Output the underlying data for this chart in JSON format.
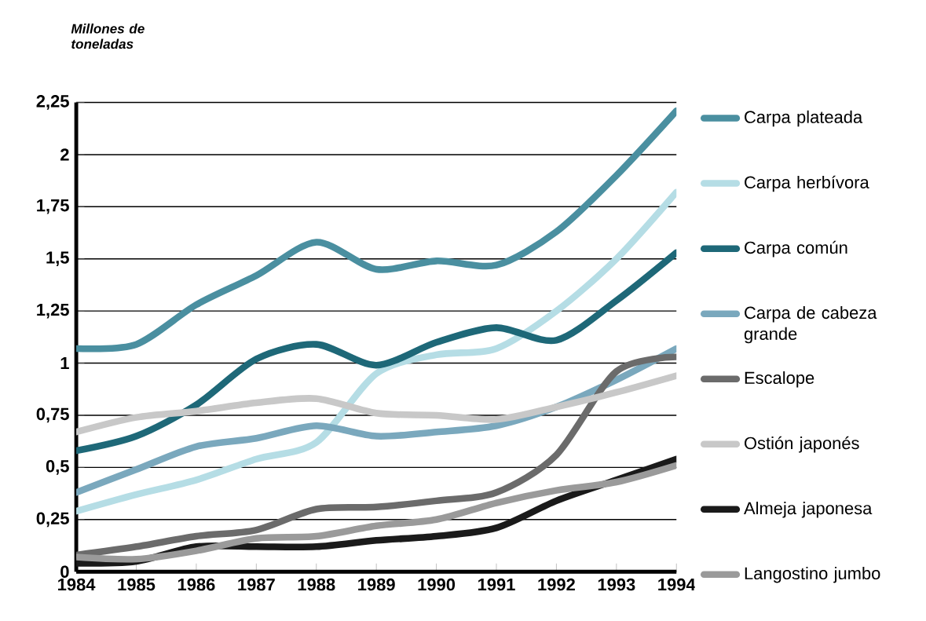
{
  "chart_data": {
    "type": "line",
    "ylabel": "Millones de toneladas",
    "x": [
      1984,
      1985,
      1986,
      1987,
      1988,
      1989,
      1990,
      1991,
      1992,
      1993,
      1994
    ],
    "xlim": [
      1984,
      1994
    ],
    "xticks": [
      1984,
      1985,
      1986,
      1987,
      1988,
      1989,
      1990,
      1991,
      1992,
      1993,
      1994
    ],
    "ylim": [
      0,
      2.25
    ],
    "yticks": [
      0,
      {
        "value": 0.25,
        "label": "0,25"
      },
      {
        "value": 0.5,
        "label": "0,5"
      },
      {
        "value": 0.75,
        "label": "0,75"
      },
      1,
      {
        "value": 1.25,
        "label": "1,25"
      },
      {
        "value": 1.5,
        "label": "1,5"
      },
      {
        "value": 1.75,
        "label": "1,75"
      },
      2,
      {
        "value": 2.25,
        "label": "2,25"
      }
    ],
    "grid": "y",
    "legend": "right",
    "marker": "none",
    "line_style": "solid",
    "series": [
      {
        "name": "Carpa plateada",
        "color": "#4a8fa0",
        "values": [
          1.07,
          1.09,
          1.28,
          1.42,
          1.58,
          1.45,
          1.49,
          1.47,
          1.63,
          1.9,
          2.21
        ]
      },
      {
        "name": "Carpa herbívora",
        "color": "#b5dde5",
        "values": [
          0.29,
          0.37,
          0.44,
          0.54,
          0.62,
          0.95,
          1.04,
          1.07,
          1.25,
          1.5,
          1.82
        ]
      },
      {
        "name": "Carpa común",
        "color": "#1e6878",
        "values": [
          0.58,
          0.65,
          0.8,
          1.02,
          1.09,
          0.99,
          1.1,
          1.17,
          1.11,
          1.3,
          1.53
        ]
      },
      {
        "name": "Carpa de cabeza grande",
        "color": "#7aa8bd",
        "values": [
          0.38,
          0.49,
          0.6,
          0.64,
          0.7,
          0.65,
          0.67,
          0.7,
          0.79,
          0.92,
          1.07
        ]
      },
      {
        "name": "Escalope",
        "color": "#6b6b6b",
        "values": [
          0.08,
          0.12,
          0.17,
          0.2,
          0.3,
          0.31,
          0.34,
          0.38,
          0.56,
          0.96,
          1.03
        ]
      },
      {
        "name": "Ostión japonés",
        "color": "#c8c8c8",
        "values": [
          0.67,
          0.74,
          0.77,
          0.81,
          0.83,
          0.76,
          0.75,
          0.73,
          0.79,
          0.86,
          0.94
        ]
      },
      {
        "name": "Almeja japonesa",
        "color": "#1a1a1a",
        "values": [
          0.04,
          0.05,
          0.12,
          0.12,
          0.12,
          0.15,
          0.17,
          0.21,
          0.34,
          0.44,
          0.54
        ]
      },
      {
        "name": "Langostino jumbo",
        "color": "#9a9a9a",
        "values": [
          0.07,
          0.06,
          0.1,
          0.16,
          0.17,
          0.22,
          0.25,
          0.33,
          0.39,
          0.43,
          0.51
        ]
      }
    ]
  }
}
